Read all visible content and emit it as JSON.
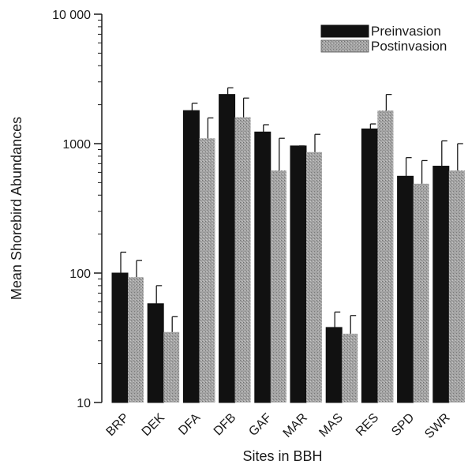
{
  "chart_data": {
    "type": "bar",
    "xlabel": "Sites in BBH",
    "ylabel": "Mean Shorebird Abundances",
    "yscale": "log",
    "ylim": [
      10,
      10000
    ],
    "yticks": [
      10,
      100,
      1000,
      10000
    ],
    "ytick_labels": [
      "10",
      "100",
      "1000",
      "10 000"
    ],
    "categories": [
      "BRP",
      "DEK",
      "DFA",
      "DFB",
      "GAF",
      "MAR",
      "MAS",
      "RES",
      "SPD",
      "SWR"
    ],
    "series": [
      {
        "name": "Preinvasion",
        "color": "#111111",
        "values": [
          100,
          58,
          1800,
          2400,
          1230,
          960,
          38,
          1300,
          560,
          670
        ],
        "error_upper": [
          145,
          80,
          2050,
          2700,
          1400,
          960,
          50,
          1420,
          780,
          1050
        ]
      },
      {
        "name": "Postinvasion",
        "color": "#9a9a9a",
        "values": [
          93,
          35,
          1100,
          1600,
          620,
          860,
          34,
          1800,
          490,
          620
        ],
        "error_upper": [
          125,
          46,
          1580,
          2250,
          1100,
          1180,
          47,
          2400,
          740,
          1000
        ]
      }
    ],
    "legend": {
      "position": "top-right"
    },
    "grid": false
  }
}
